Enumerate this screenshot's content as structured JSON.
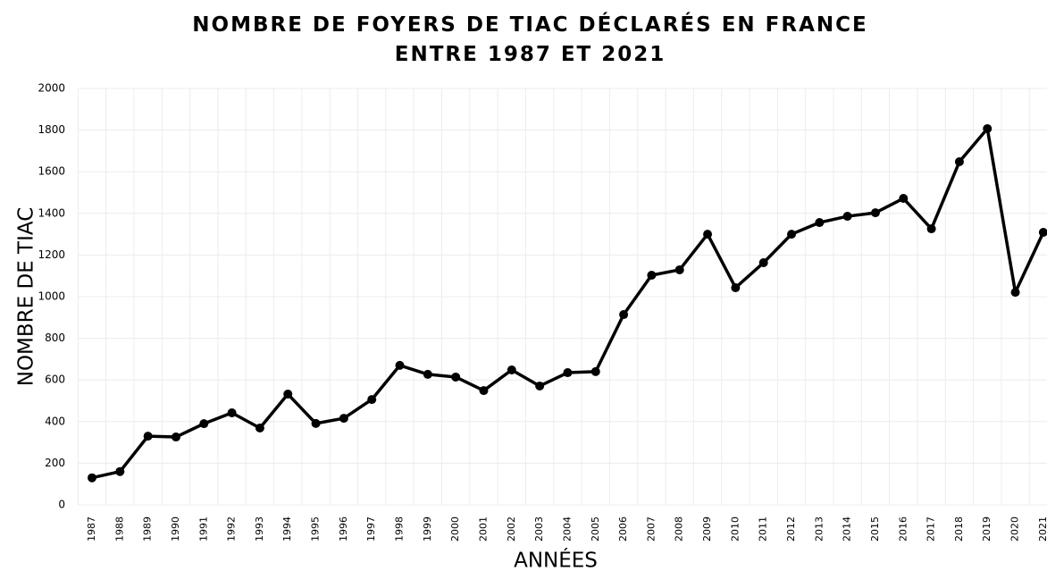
{
  "chart_data": {
    "type": "line",
    "title": "NOMBRE DE FOYERS DE TIAC DÉCLARÉS EN FRANCE ENTRE 1987 ET 2021",
    "x_label": "ANNÉES",
    "y_label": "NOMBRE DE TIAC",
    "categories": [
      "1987",
      "1988",
      "1989",
      "1990",
      "1991",
      "1992",
      "1993",
      "1994",
      "1995",
      "1996",
      "1997",
      "1998",
      "1999",
      "2000",
      "2001",
      "2002",
      "2003",
      "2004",
      "2005",
      "2006",
      "2007",
      "2008",
      "2009",
      "2010",
      "2011",
      "2012",
      "2013",
      "2014",
      "2015",
      "2016",
      "2017",
      "2018",
      "2019",
      "2020",
      "2021"
    ],
    "series": [
      {
        "name": "TIAC",
        "color": "#000000",
        "values": [
          130,
          160,
          330,
          326,
          390,
          442,
          369,
          532,
          391,
          416,
          506,
          670,
          627,
          614,
          549,
          648,
          571,
          635,
          640,
          914,
          1103,
          1129,
          1300,
          1043,
          1163,
          1300,
          1356,
          1386,
          1403,
          1472,
          1326,
          1648,
          1807,
          1021,
          1309
        ]
      }
    ],
    "ylim": [
      0,
      2000
    ],
    "yticks": [
      0,
      200,
      400,
      600,
      800,
      1000,
      1200,
      1400,
      1600,
      1800,
      2000
    ],
    "grid": true
  }
}
